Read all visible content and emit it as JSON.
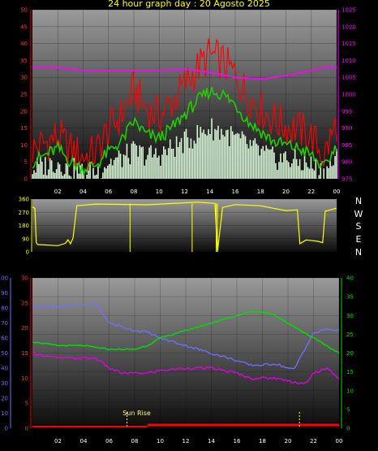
{
  "title": "24 hour graph day : 20 Agosto 2025",
  "colors": {
    "bg": "#000000",
    "panel_top": "#9a9a9a",
    "panel_bottom": "#0b0b0b",
    "gust": "#ff0000",
    "wind_avg": "#22cc00",
    "wind_min": "#d8f5d8",
    "pressure": "#ff00ff",
    "direction": "#ffff00",
    "humidity": "#7070ff",
    "temperature": "#00dd00",
    "dewpoint": "#e000e0",
    "rain": "#ff0000",
    "sunrise": "#ffff66"
  },
  "compass": [
    "N",
    "W",
    "S",
    "E",
    "N"
  ],
  "chart_data": [
    {
      "type": "line",
      "x_ticks": [
        "02",
        "04",
        "06",
        "08",
        "10",
        "12",
        "14",
        "16",
        "18",
        "20",
        "22",
        "00"
      ],
      "y_left_ticks": [
        0,
        5,
        10,
        15,
        20,
        25,
        30,
        35,
        40,
        45,
        50
      ],
      "ylim_left": [
        0,
        50
      ],
      "y_right_ticks": [
        975,
        980,
        985,
        990,
        995,
        1000,
        1005,
        1010,
        1015,
        1020,
        1025
      ],
      "ylim_right": [
        975,
        1025
      ],
      "grid": true,
      "series": [
        {
          "key": "gust",
          "x": [
            0,
            1,
            2,
            3,
            4,
            5,
            6,
            7,
            8,
            9,
            10,
            11,
            12,
            13,
            14,
            15,
            16,
            17,
            18,
            19,
            20,
            21,
            22,
            23,
            24
          ],
          "values": [
            8,
            10,
            12,
            8,
            6,
            7,
            14,
            18,
            26,
            20,
            18,
            22,
            27,
            32,
            36,
            34,
            30,
            24,
            20,
            17,
            15,
            14,
            12,
            6,
            16
          ]
        },
        {
          "key": "wind_avg",
          "x": [
            0,
            1,
            2,
            3,
            4,
            5,
            6,
            7,
            8,
            9,
            10,
            11,
            12,
            13,
            14,
            15,
            16,
            17,
            18,
            19,
            20,
            21,
            22,
            23,
            24
          ],
          "values": [
            5,
            7,
            9,
            5,
            3,
            4,
            8,
            11,
            17,
            13,
            12,
            15,
            19,
            23,
            26,
            25,
            22,
            17,
            14,
            11,
            10,
            9,
            7,
            3,
            10
          ]
        },
        {
          "key": "wind_min",
          "x": [
            0,
            1,
            2,
            3,
            4,
            5,
            6,
            7,
            8,
            9,
            10,
            11,
            12,
            13,
            14,
            15,
            16,
            17,
            18,
            19,
            20,
            21,
            22,
            23,
            24
          ],
          "values": [
            3,
            4,
            5,
            3,
            2,
            2,
            5,
            6,
            8,
            7,
            7,
            9,
            11,
            13,
            15,
            14,
            12,
            10,
            8,
            6,
            6,
            5,
            4,
            2,
            6
          ]
        },
        {
          "key": "pressure",
          "axis": "right",
          "x": [
            0,
            2,
            4,
            6,
            8,
            10,
            12,
            14,
            16,
            18,
            20,
            22,
            23,
            24
          ],
          "values": [
            1008,
            1008,
            1007,
            1007,
            1007,
            1007,
            1007.5,
            1006.5,
            1005,
            1004.5,
            1005.5,
            1007,
            1008,
            1008
          ]
        }
      ]
    },
    {
      "type": "line",
      "x_ticks": [],
      "y_left_ticks": [
        0,
        90,
        180,
        270,
        360
      ],
      "ylim_left": [
        0,
        360
      ],
      "series": [
        {
          "key": "direction",
          "x": [
            0,
            0.2,
            0.3,
            0.4,
            2,
            2.6,
            2.8,
            3,
            3.2,
            3.5,
            5,
            7,
            9,
            11,
            13,
            14.4,
            14.6,
            15,
            16,
            18,
            19,
            20,
            20.9,
            21.1,
            21.6,
            22.5,
            22.9,
            23.1,
            24
          ],
          "values": [
            310,
            300,
            60,
            50,
            40,
            60,
            80,
            60,
            90,
            310,
            330,
            320,
            325,
            330,
            335,
            330,
            0,
            300,
            320,
            310,
            300,
            280,
            290,
            60,
            80,
            70,
            60,
            280,
            300
          ]
        }
      ]
    },
    {
      "type": "line",
      "x_ticks": [
        "02",
        "04",
        "06",
        "08",
        "10",
        "12",
        "14",
        "16",
        "18",
        "20",
        "22",
        "00"
      ],
      "y_left1_ticks": [
        0,
        10,
        20,
        30,
        40,
        50,
        60,
        70,
        80,
        90,
        100
      ],
      "ylim_left1": [
        0,
        100
      ],
      "y_left2_ticks": [
        0,
        5,
        10,
        15,
        20,
        25,
        30
      ],
      "ylim_left2": [
        0,
        30
      ],
      "y_right_ticks": [
        0,
        5,
        10,
        15,
        20,
        25,
        30,
        35,
        40
      ],
      "ylim_right": [
        0,
        40
      ],
      "annotations": [
        "Sun Rise"
      ],
      "series": [
        {
          "key": "humidity",
          "axis": "left1",
          "x": [
            0,
            2,
            4,
            5,
            6,
            8,
            9,
            10,
            12,
            14,
            16,
            17,
            18,
            19,
            20,
            20.5,
            21,
            22,
            23,
            24
          ],
          "values": [
            81,
            81,
            82,
            83,
            70,
            65,
            64,
            60,
            55,
            50,
            45,
            42,
            42,
            43,
            40,
            39,
            48,
            63,
            66,
            65
          ]
        },
        {
          "key": "temperature",
          "axis": "right",
          "x": [
            0,
            2,
            4,
            6,
            8,
            9,
            10,
            12,
            14,
            16,
            17,
            18,
            19,
            20,
            22,
            24
          ],
          "values": [
            23,
            22,
            22,
            21,
            21,
            22,
            24,
            26,
            28,
            30,
            31,
            31,
            30,
            28,
            24,
            20
          ]
        },
        {
          "key": "dewpoint",
          "axis": "left2",
          "x": [
            0,
            2,
            4,
            5,
            6,
            7,
            8,
            9,
            10,
            12,
            14,
            16,
            17,
            18,
            19,
            20,
            21,
            21.5,
            22,
            23,
            24
          ],
          "values": [
            15,
            14,
            14,
            14,
            12,
            11,
            11,
            11,
            11.5,
            12,
            12,
            11,
            10,
            10,
            10,
            9.5,
            9,
            9,
            11,
            12,
            10
          ]
        },
        {
          "key": "rain",
          "axis": "left2",
          "x": [
            0,
            24
          ],
          "values": [
            0,
            0
          ]
        }
      ]
    }
  ]
}
